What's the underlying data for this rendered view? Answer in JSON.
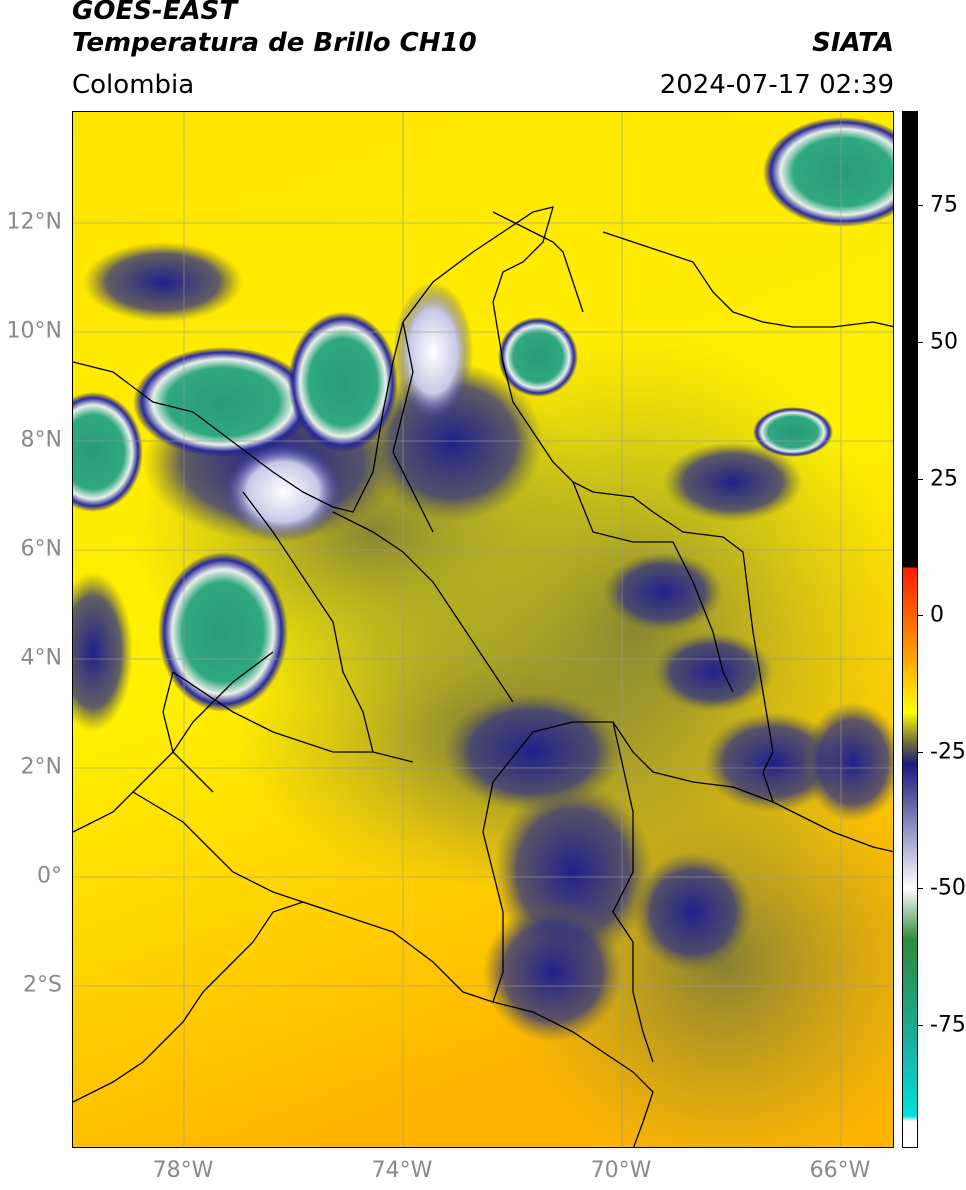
{
  "header": {
    "title_line1": "GOES-EAST",
    "title_line2": "Temperatura de Brillo CH10",
    "source": "SIATA",
    "region": "Colombia",
    "datetime": "2024-07-17 02:39"
  },
  "map": {
    "latitude_labels": [
      "12°N",
      "10°N",
      "8°N",
      "6°N",
      "4°N",
      "2°N",
      "0°",
      "2°S"
    ],
    "longitude_labels": [
      "78°W",
      "74°W",
      "70°W",
      "66°W"
    ],
    "grid": true
  },
  "colorbar": {
    "tick_labels": [
      "75",
      "50",
      "25",
      "0",
      "-25",
      "-50",
      "-75"
    ],
    "colors": {
      "black": "#000000",
      "red": "#ff1a00",
      "orange": "#ff9900",
      "yellow": "#ffff00",
      "olive": "#6b6b3a",
      "navy": "#1a1a80",
      "white": "#ffffff",
      "green": "#2e8a3a",
      "teal": "#1ab0a0",
      "cyan": "#00e0e0"
    }
  }
}
